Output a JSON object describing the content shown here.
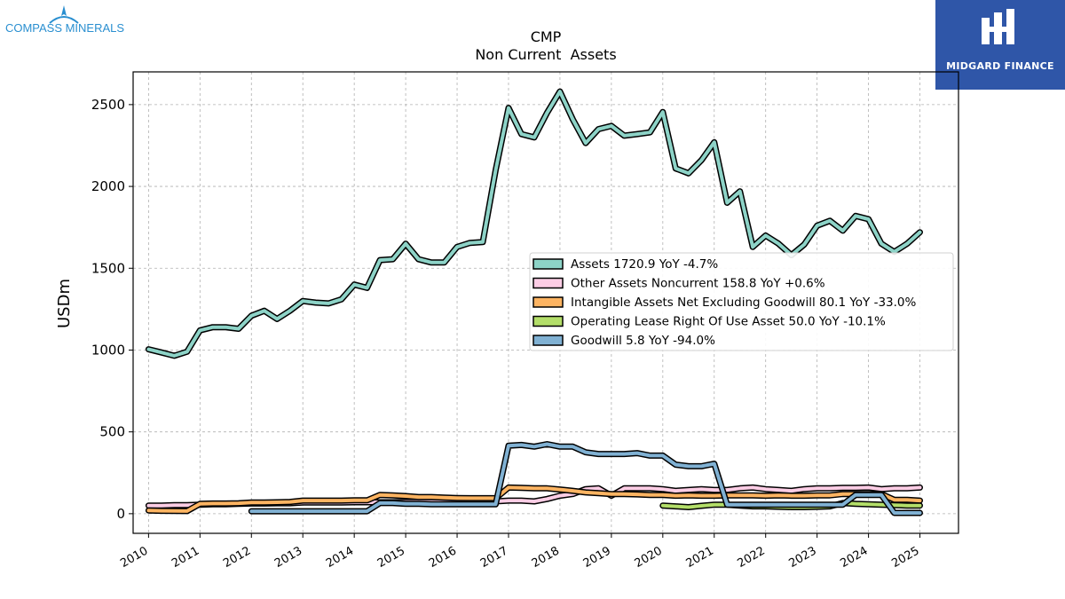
{
  "branding": {
    "left_logo_text": "COMPASS MINERALS",
    "right_logo_text": "MIDGARD FINANCE",
    "right_logo_color": "#2f56a8"
  },
  "chart_data": {
    "type": "line",
    "title": "CMP",
    "subtitle": "Non Current  Assets",
    "ylabel": "USDm",
    "xlabel": "",
    "xlim": [
      2009.7,
      2025.75
    ],
    "ylim": [
      -120,
      2700
    ],
    "grid": true,
    "legend_position": "center-right",
    "x_ticks": [
      "2010",
      "2011",
      "2012",
      "2013",
      "2014",
      "2015",
      "2016",
      "2017",
      "2018",
      "2019",
      "2020",
      "2021",
      "2022",
      "2023",
      "2024",
      "2025"
    ],
    "y_ticks": [
      0,
      500,
      1000,
      1500,
      2000,
      2500
    ],
    "series": [
      {
        "name": "Assets",
        "legend": "Assets  1720.9 YoY -4.7%",
        "color": "#8dd3c7",
        "x": [
          2010.0,
          2010.25,
          2010.5,
          2010.75,
          2011.0,
          2011.25,
          2011.5,
          2011.75,
          2012.0,
          2012.25,
          2012.5,
          2012.75,
          2013.0,
          2013.25,
          2013.5,
          2013.75,
          2014.0,
          2014.25,
          2014.5,
          2014.75,
          2015.0,
          2015.25,
          2015.5,
          2015.75,
          2016.0,
          2016.25,
          2016.5,
          2016.75,
          2017.0,
          2017.25,
          2017.5,
          2017.75,
          2018.0,
          2018.25,
          2018.5,
          2018.75,
          2019.0,
          2019.25,
          2019.5,
          2019.75,
          2020.0,
          2020.25,
          2020.5,
          2020.75,
          2021.0,
          2021.25,
          2021.5,
          2021.75,
          2022.0,
          2022.25,
          2022.5,
          2022.75,
          2023.0,
          2023.25,
          2023.5,
          2023.75,
          2024.0,
          2024.25,
          2024.5,
          2024.75,
          2025.0
        ],
        "values": [
          1005,
          985,
          965,
          990,
          1120,
          1140,
          1140,
          1130,
          1210,
          1240,
          1190,
          1240,
          1300,
          1290,
          1285,
          1310,
          1400,
          1380,
          1550,
          1555,
          1650,
          1555,
          1535,
          1535,
          1630,
          1655,
          1660,
          2100,
          2480,
          2320,
          2300,
          2450,
          2580,
          2410,
          2265,
          2350,
          2370,
          2310,
          2320,
          2330,
          2455,
          2110,
          2080,
          2160,
          2270,
          1900,
          1970,
          1630,
          1700,
          1650,
          1580,
          1645,
          1760,
          1790,
          1730,
          1820,
          1800,
          1650,
          1600,
          1650,
          1720
        ]
      },
      {
        "name": "Other Assets Noncurrent",
        "legend": "Other Assets Noncurrent  158.8 YoY +0.6%",
        "color": "#fccde5",
        "x": [
          2010.0,
          2010.25,
          2010.5,
          2010.75,
          2011.0,
          2011.25,
          2011.5,
          2011.75,
          2012.0,
          2012.25,
          2012.5,
          2012.75,
          2013.0,
          2013.25,
          2013.5,
          2013.75,
          2014.0,
          2014.25,
          2014.5,
          2014.75,
          2015.0,
          2015.25,
          2015.5,
          2015.75,
          2016.0,
          2016.25,
          2016.5,
          2016.75,
          2017.0,
          2017.25,
          2017.5,
          2017.75,
          2018.0,
          2018.25,
          2018.5,
          2018.75,
          2019.0,
          2019.25,
          2019.5,
          2019.75,
          2020.0,
          2020.25,
          2020.5,
          2020.75,
          2021.0,
          2021.25,
          2021.5,
          2021.75,
          2022.0,
          2022.25,
          2022.5,
          2022.75,
          2023.0,
          2023.25,
          2023.5,
          2023.75,
          2024.0,
          2024.25,
          2024.5,
          2024.75,
          2025.0
        ],
        "values": [
          50,
          50,
          52,
          52,
          55,
          58,
          58,
          60,
          62,
          62,
          64,
          64,
          68,
          68,
          68,
          68,
          70,
          70,
          70,
          70,
          72,
          72,
          72,
          72,
          72,
          72,
          72,
          75,
          80,
          80,
          75,
          90,
          110,
          120,
          150,
          155,
          110,
          155,
          155,
          155,
          150,
          140,
          145,
          150,
          145,
          145,
          155,
          160,
          150,
          145,
          140,
          150,
          155,
          155,
          158,
          158,
          160,
          150,
          155,
          155,
          160
        ]
      },
      {
        "name": "Intangible Assets Net Excluding Goodwill",
        "legend": "Intangible Assets Net Excluding Goodwill  80.1 YoY -33.0%",
        "color": "#fdb462",
        "x": [
          2010.0,
          2010.25,
          2010.5,
          2010.75,
          2011.0,
          2011.25,
          2011.5,
          2011.75,
          2012.0,
          2012.25,
          2012.5,
          2012.75,
          2013.0,
          2013.25,
          2013.5,
          2013.75,
          2014.0,
          2014.25,
          2014.5,
          2014.75,
          2015.0,
          2015.25,
          2015.5,
          2015.75,
          2016.0,
          2016.25,
          2016.5,
          2016.75,
          2017.0,
          2017.25,
          2017.5,
          2017.75,
          2018.0,
          2018.25,
          2018.5,
          2018.75,
          2019.0,
          2019.25,
          2019.5,
          2019.75,
          2020.0,
          2020.25,
          2020.5,
          2020.75,
          2021.0,
          2021.25,
          2021.5,
          2021.75,
          2022.0,
          2022.25,
          2022.5,
          2022.75,
          2023.0,
          2023.25,
          2023.5,
          2023.75,
          2024.0,
          2024.25,
          2024.5,
          2024.75,
          2025.0
        ],
        "values": [
          20,
          18,
          17,
          16,
          60,
          62,
          62,
          64,
          68,
          68,
          70,
          72,
          80,
          80,
          80,
          80,
          82,
          82,
          115,
          112,
          108,
          102,
          102,
          98,
          96,
          95,
          95,
          95,
          160,
          158,
          155,
          155,
          148,
          140,
          130,
          125,
          120,
          120,
          118,
          115,
          115,
          110,
          112,
          110,
          110,
          112,
          112,
          112,
          110,
          112,
          110,
          110,
          112,
          112,
          120,
          120,
          120,
          120,
          85,
          85,
          80
        ]
      },
      {
        "name": "Operating Lease Right Of Use Asset",
        "legend": "Operating Lease Right Of Use Asset  50.0 YoY -10.1%",
        "color": "#b3de69",
        "x": [
          2020.0,
          2020.25,
          2020.5,
          2020.75,
          2021.0,
          2021.25,
          2021.5,
          2021.75,
          2022.0,
          2022.25,
          2022.5,
          2022.75,
          2023.0,
          2023.25,
          2023.5,
          2023.75,
          2024.0,
          2024.25,
          2024.5,
          2024.75,
          2025.0
        ],
        "values": [
          50,
          45,
          40,
          48,
          55,
          55,
          50,
          45,
          45,
          42,
          40,
          40,
          42,
          45,
          65,
          60,
          58,
          55,
          52,
          50,
          50
        ]
      },
      {
        "name": "Goodwill",
        "legend": "Goodwill  5.8 YoY -94.0%",
        "color": "#80b1d3",
        "x": [
          2012.0,
          2012.25,
          2012.5,
          2012.75,
          2013.0,
          2013.25,
          2013.5,
          2013.75,
          2014.0,
          2014.25,
          2014.5,
          2014.75,
          2015.0,
          2015.25,
          2015.5,
          2015.75,
          2016.0,
          2016.25,
          2016.5,
          2016.75,
          2017.0,
          2017.25,
          2017.5,
          2017.75,
          2018.0,
          2018.25,
          2018.5,
          2018.75,
          2019.0,
          2019.25,
          2019.5,
          2019.75,
          2020.0,
          2020.25,
          2020.5,
          2020.75,
          2021.0,
          2021.25,
          2021.5,
          2021.75,
          2022.0,
          2022.25,
          2022.5,
          2022.75,
          2023.0,
          2023.25,
          2023.5,
          2023.75,
          2024.0,
          2024.25,
          2024.5,
          2024.75,
          2025.0
        ],
        "values": [
          15,
          15,
          15,
          15,
          15,
          15,
          15,
          15,
          15,
          15,
          65,
          65,
          60,
          60,
          58,
          58,
          58,
          58,
          58,
          58,
          415,
          420,
          410,
          425,
          410,
          410,
          375,
          365,
          365,
          365,
          370,
          355,
          355,
          300,
          290,
          290,
          305,
          55,
          55,
          55,
          55,
          55,
          55,
          55,
          55,
          55,
          55,
          115,
          115,
          115,
          5,
          5,
          5
        ]
      }
    ]
  }
}
